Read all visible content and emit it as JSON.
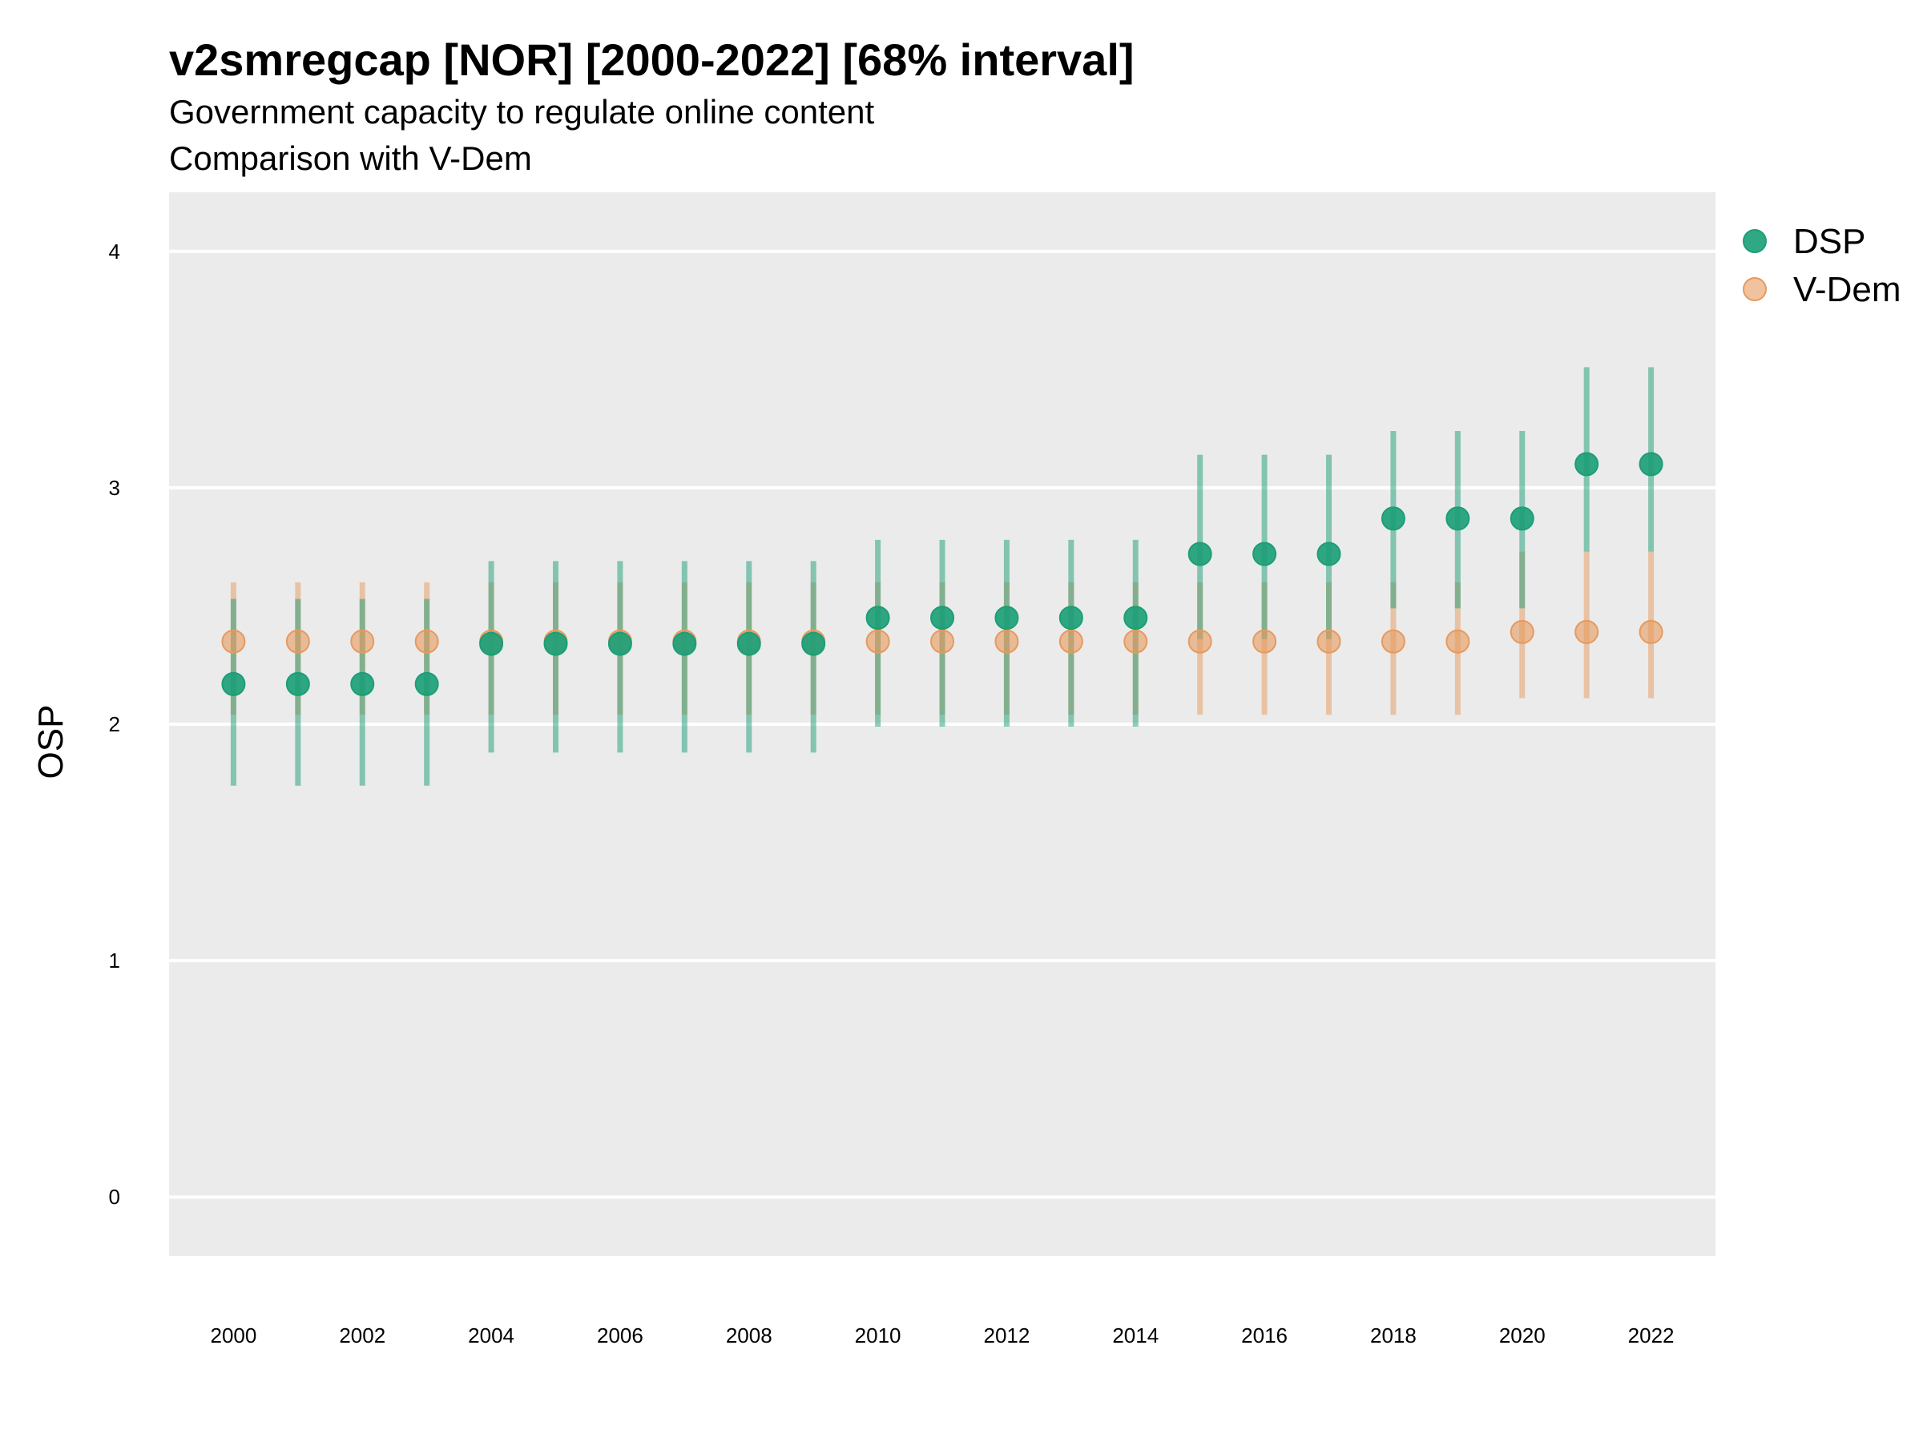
{
  "chart_data": {
    "type": "scatter",
    "title": "v2smregcap [NOR] [2000-2022] [68% interval]",
    "subtitle_lines": [
      "Government capacity to regulate online content",
      "Comparison with V-Dem"
    ],
    "xlabel": "",
    "ylabel": "OSP",
    "ylim": [
      -0.25,
      4.25
    ],
    "xlim": [
      1999.0,
      2023.0
    ],
    "y_ticks": [
      "0",
      "1",
      "2",
      "3",
      "4"
    ],
    "x_ticks": [
      "2000",
      "2002",
      "2004",
      "2006",
      "2008",
      "2010",
      "2012",
      "2014",
      "2016",
      "2018",
      "2020",
      "2022"
    ],
    "grid": true,
    "legend_position": "right",
    "x": [
      2000,
      2001,
      2002,
      2003,
      2004,
      2005,
      2006,
      2007,
      2008,
      2009,
      2010,
      2011,
      2012,
      2013,
      2014,
      2015,
      2016,
      2017,
      2018,
      2019,
      2020,
      2021,
      2022
    ],
    "series": [
      {
        "name": "DSP",
        "color": "#1b9e77",
        "values": [
          2.17,
          2.17,
          2.17,
          2.17,
          2.34,
          2.34,
          2.34,
          2.34,
          2.34,
          2.34,
          2.45,
          2.45,
          2.45,
          2.45,
          2.45,
          2.72,
          2.72,
          2.72,
          2.87,
          2.87,
          2.87,
          3.1,
          3.1
        ],
        "lower": [
          1.74,
          1.74,
          1.74,
          1.74,
          1.88,
          1.88,
          1.88,
          1.88,
          1.88,
          1.88,
          1.99,
          1.99,
          1.99,
          1.99,
          1.99,
          2.36,
          2.36,
          2.36,
          2.49,
          2.49,
          2.49,
          2.73,
          2.73
        ],
        "upper": [
          2.53,
          2.53,
          2.53,
          2.53,
          2.69,
          2.69,
          2.69,
          2.69,
          2.69,
          2.69,
          2.78,
          2.78,
          2.78,
          2.78,
          2.78,
          3.14,
          3.14,
          3.14,
          3.24,
          3.24,
          3.24,
          3.51,
          3.51
        ]
      },
      {
        "name": "V-Dem",
        "color": "#e69a5e",
        "values": [
          2.35,
          2.35,
          2.35,
          2.35,
          2.35,
          2.35,
          2.35,
          2.35,
          2.35,
          2.35,
          2.35,
          2.35,
          2.35,
          2.35,
          2.35,
          2.35,
          2.35,
          2.35,
          2.35,
          2.35,
          2.39,
          2.39,
          2.39
        ],
        "lower": [
          2.04,
          2.04,
          2.04,
          2.04,
          2.04,
          2.04,
          2.04,
          2.04,
          2.04,
          2.04,
          2.04,
          2.04,
          2.04,
          2.04,
          2.04,
          2.04,
          2.04,
          2.04,
          2.04,
          2.04,
          2.11,
          2.11,
          2.11
        ],
        "upper": [
          2.6,
          2.6,
          2.6,
          2.6,
          2.6,
          2.6,
          2.6,
          2.6,
          2.6,
          2.6,
          2.6,
          2.6,
          2.6,
          2.6,
          2.6,
          2.6,
          2.6,
          2.6,
          2.6,
          2.6,
          2.73,
          2.73,
          2.73
        ]
      }
    ]
  }
}
